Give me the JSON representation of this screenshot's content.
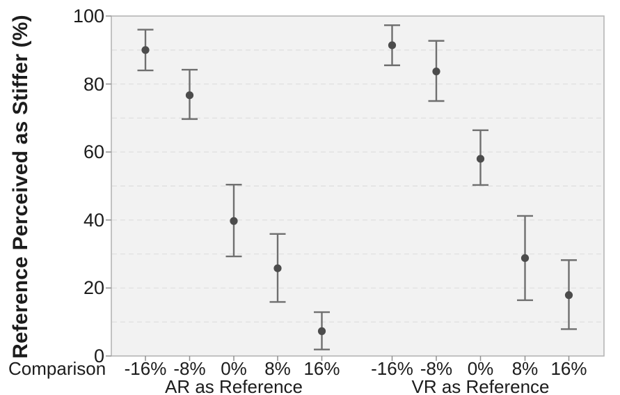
{
  "figure": {
    "y_axis": {
      "title": "Reference Perceived as Stiffer (%)",
      "tick_labels": [
        "0",
        "20",
        "40",
        "60",
        "80",
        "100"
      ]
    },
    "x_axis": {
      "title": "Comparison",
      "tick_labels": [
        "-16%",
        "-8%",
        "0%",
        "8%",
        "16%"
      ],
      "group_labels": [
        "AR as Reference",
        "VR as Reference"
      ]
    }
  },
  "chart_data": {
    "type": "scatter",
    "title": "",
    "ylabel": "Reference Perceived as Stiffer (%)",
    "xlabel": "Comparison",
    "ylim": [
      0,
      100
    ],
    "yticks": [
      0,
      20,
      40,
      60,
      80,
      100
    ],
    "grid": {
      "visible": true,
      "orientation": "horizontal",
      "interval": 10,
      "style": "dashed"
    },
    "legend": "none",
    "marker": "circle",
    "error_bars": "vertical-with-caps",
    "categories": [
      "-16%",
      "-8%",
      "0%",
      "8%",
      "16%"
    ],
    "series": [
      {
        "name": "AR as Reference",
        "means": [
          90.0,
          76.7,
          39.7,
          25.8,
          7.3
        ],
        "ci_low": [
          84.0,
          69.7,
          29.3,
          15.9,
          1.9
        ],
        "ci_high": [
          96.0,
          84.2,
          50.4,
          35.9,
          12.9
        ]
      },
      {
        "name": "VR as Reference",
        "means": [
          91.4,
          83.7,
          58.0,
          28.8,
          17.9
        ],
        "ci_low": [
          85.5,
          75.0,
          50.3,
          16.4,
          7.9
        ],
        "ci_high": [
          97.3,
          92.7,
          66.4,
          41.2,
          28.2
        ]
      }
    ],
    "colors": {
      "marker": "#4c4c4c",
      "error_bar": "#6f6f6f",
      "plot_background": "#f2f2f2",
      "gridline": "#e0e0e0",
      "border": "#b5b5b5",
      "tick": "#8f8f8f",
      "text": "#1a1a1a"
    }
  }
}
